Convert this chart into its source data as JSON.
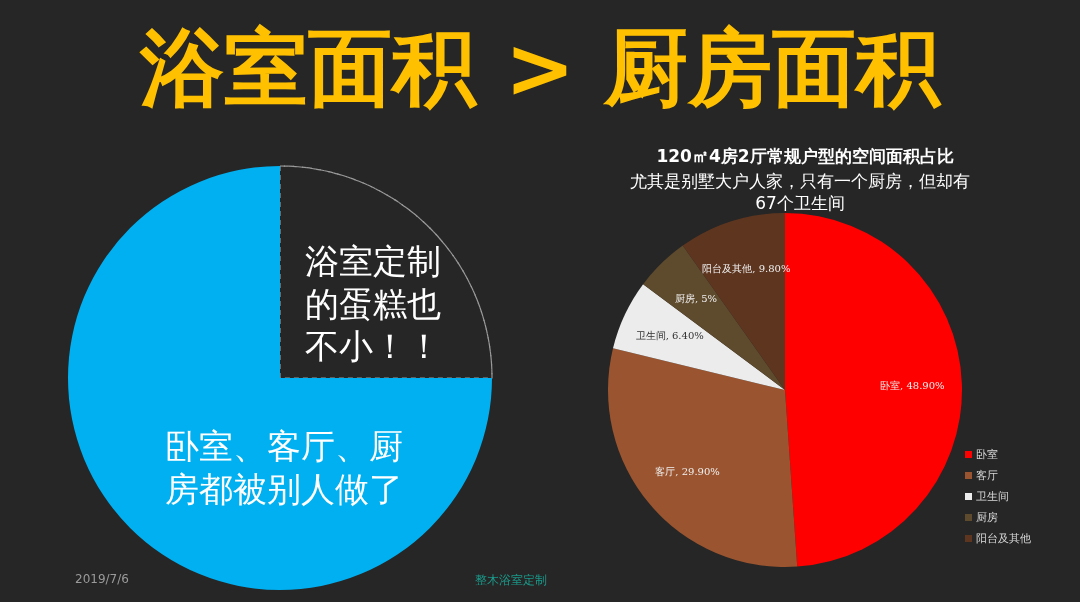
{
  "chart_data": [
    {
      "type": "pie",
      "title": "浴室面积 > 厨房面积",
      "categories": [
        "浴室定制的蛋糕也不小！！",
        "卧室、客厅、厨房都被别人做了"
      ],
      "values": [
        25,
        75
      ],
      "colors": [
        "#262626",
        "#00b0f0"
      ],
      "annotations": [
        "2019/7/6",
        "整木浴室定制"
      ]
    },
    {
      "type": "pie",
      "title": "120㎡4房2厅常规户型的空间面积占比",
      "subtitle": "尤其是别墅大户人家，只有一个厨房，但却有67个卫生间",
      "categories": [
        "卧室",
        "客厅",
        "卫生间",
        "厨房",
        "阳台及其他"
      ],
      "values": [
        48.9,
        29.9,
        6.4,
        5,
        9.8
      ],
      "colors": [
        "#ff0000",
        "#9a5530",
        "#ececec",
        "#5e4a2c",
        "#5e3620"
      ],
      "value_labels": [
        "卧室, 48.90%",
        "客厅, 29.90%",
        "卫生间, 6.40%",
        "厨房, 5%",
        "阳台及其他, 9.80%"
      ],
      "legend": "bottom right"
    }
  ]
}
